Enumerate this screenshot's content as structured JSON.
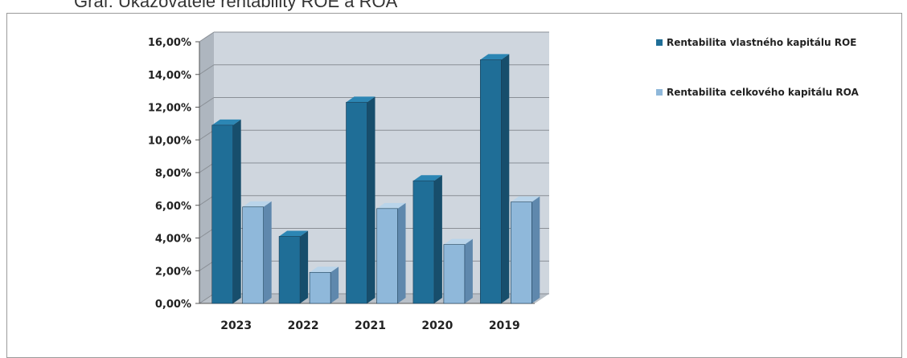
{
  "page": {
    "title": "Graf: Ukazovatele rentability ROE a ROA"
  },
  "colors": {
    "roe": "#1f6e97",
    "roe_dark": "#174e6c",
    "roe_top": "#2c86b4",
    "roa": "#8fb8da",
    "roa_dark": "#5f88ad",
    "roa_top": "#b9d4ea",
    "wall": "#cfd6de",
    "grid": "#8a8f96"
  },
  "chart_data": {
    "type": "bar",
    "categories": [
      "2023",
      "2022",
      "2021",
      "2020",
      "2019"
    ],
    "series": [
      {
        "name": "Rentabilita vlastného kapitálu ROE",
        "values": [
          10.9,
          4.1,
          12.3,
          7.5,
          14.9
        ]
      },
      {
        "name": "Rentabilita celkového kapitálu ROA",
        "values": [
          5.9,
          1.9,
          5.8,
          3.6,
          6.2
        ]
      }
    ],
    "yticks": [
      "0,00%",
      "2,00%",
      "4,00%",
      "6,00%",
      "8,00%",
      "10,00%",
      "12,00%",
      "14,00%",
      "16,00%"
    ],
    "ylim": [
      0,
      16
    ],
    "grid": true,
    "legend_position": "right",
    "title": "",
    "xlabel": "",
    "ylabel": ""
  }
}
